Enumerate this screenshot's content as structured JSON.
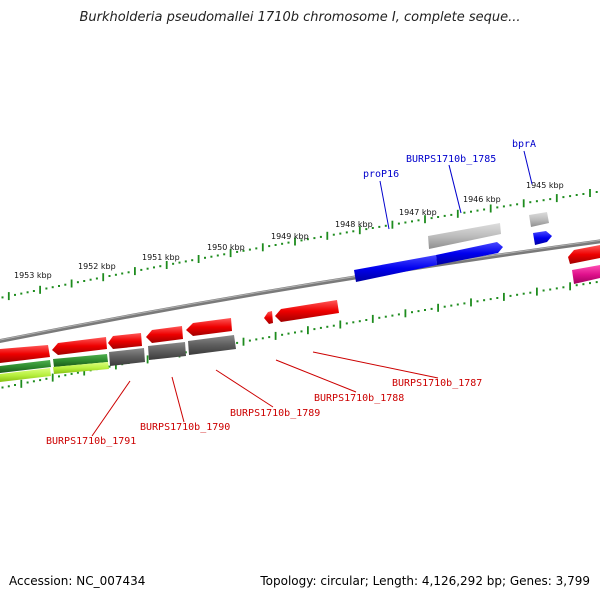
{
  "header": {
    "title": "Burkholderia pseudomallei 1710b chromosome I, complete seque..."
  },
  "footer": {
    "accession": "Accession: NC_007434",
    "stats": "Topology: circular; Length: 4,126,292 bp; Genes: 3,799"
  },
  "ruler": {
    "ticks": [
      "1953 kbp",
      "1952 kbp",
      "1951 kbp",
      "1950 kbp",
      "1949 kbp",
      "1948 kbp",
      "1947 kbp",
      "1946 kbp",
      "1945 kbp"
    ]
  },
  "gene_labels": {
    "forward": [
      "proP16",
      "BURPS1710b_1785",
      "bprA"
    ],
    "reverse": [
      "BURPS1710b_1787",
      "BURPS1710b_1788",
      "BURPS1710b_1789",
      "BURPS1710b_1790",
      "BURPS1710b_1791"
    ]
  },
  "colors": {
    "forward_gene": "#0000ee",
    "reverse_gene": "#e60000",
    "pseudo_gene": "#b4b4b4",
    "dark_feature": "#606060",
    "green_feature": "#2e8b2e",
    "lime_feature": "#b8f040",
    "pink_feature": "#e0108c",
    "ruler_tick": "#1e8c1e",
    "backbone": "#888888",
    "forward_label": "#0000cc",
    "reverse_label": "#cc0000"
  }
}
